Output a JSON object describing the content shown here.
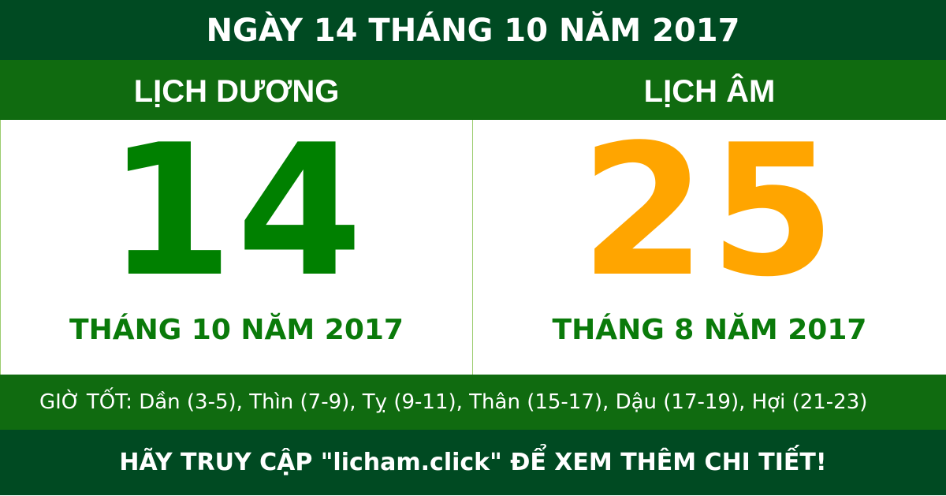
{
  "title": "NGÀY 14 THÁNG 10 NĂM 2017",
  "solar": {
    "label": "LỊCH DƯƠNG",
    "day": "14",
    "month_year": "THÁNG 10 NĂM 2017"
  },
  "lunar": {
    "label": "LỊCH ÂM",
    "day": "25",
    "month_year": "THÁNG 8 NĂM 2017"
  },
  "good_hours": "GIỜ TỐT: Dần (3-5), Thìn (7-9), Tỵ (9-11), Thân (15-17), Dậu (17-19), Hợi (21-23)",
  "footer": "HÃY TRUY CẬP \"licham.click\" ĐỂ XEM THÊM CHI TIẾT!",
  "colors": {
    "dark_green": "#004a22",
    "green": "#106b10",
    "solar_day": "#008000",
    "lunar_day": "#ffa500"
  }
}
